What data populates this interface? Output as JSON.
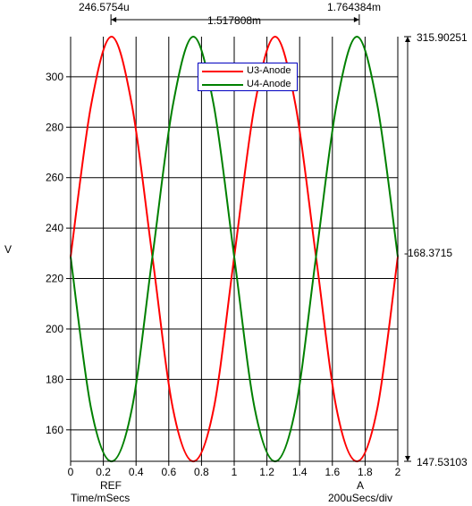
{
  "chart_data": {
    "type": "line",
    "ylabel": "V",
    "x_tick_labels": [
      "0",
      "0.2",
      "0.4",
      "0.6",
      "0.8",
      "1",
      "1.2",
      "1.4",
      "1.6",
      "1.8",
      "2"
    ],
    "y_tick_labels": [
      "160",
      "180",
      "200",
      "220",
      "240",
      "260",
      "280",
      "300"
    ],
    "x_range": [
      0,
      2
    ],
    "y_range": [
      147.53103,
      315.90251
    ],
    "grid": true,
    "legend_position": "top-center",
    "series": [
      {
        "name": "U3-Anode",
        "color": "#ff0000",
        "x": [
          0,
          0.125,
          0.25,
          0.375,
          0.5,
          0.625,
          0.75,
          0.875,
          1.0,
          1.125,
          1.25,
          1.375,
          1.5,
          1.625,
          1.75,
          1.875,
          2.0
        ],
        "values": [
          228.6,
          288.7,
          315.9,
          288.7,
          228.6,
          168.5,
          147.5,
          168.5,
          228.6,
          288.7,
          315.9,
          288.7,
          228.6,
          168.5,
          147.5,
          168.5,
          228.6
        ]
      },
      {
        "name": "U4-Anode",
        "color": "#008000",
        "x": [
          0,
          0.125,
          0.25,
          0.375,
          0.5,
          0.625,
          0.75,
          0.875,
          1.0,
          1.125,
          1.25,
          1.375,
          1.5,
          1.625,
          1.75,
          1.875,
          2.0
        ],
        "values": [
          228.6,
          168.5,
          147.5,
          168.5,
          228.6,
          288.7,
          315.9,
          288.7,
          228.6,
          168.5,
          147.5,
          168.5,
          228.6,
          288.7,
          315.9,
          288.7,
          228.6
        ]
      }
    ],
    "cursors": {
      "ref_x": 0.2466,
      "a_x": 1.7644,
      "ref_readout": "246.5754u",
      "a_readout": "1.764384m",
      "delta_readout": "1.517808m",
      "ref_label": "REF",
      "a_label": "A",
      "top_readout": "315.90251",
      "mid_readout": "-168.3715",
      "bottom_readout": "147.53103"
    },
    "xaxis_caption": "Time/mSecs",
    "xscale_caption": "200uSecs/div"
  }
}
